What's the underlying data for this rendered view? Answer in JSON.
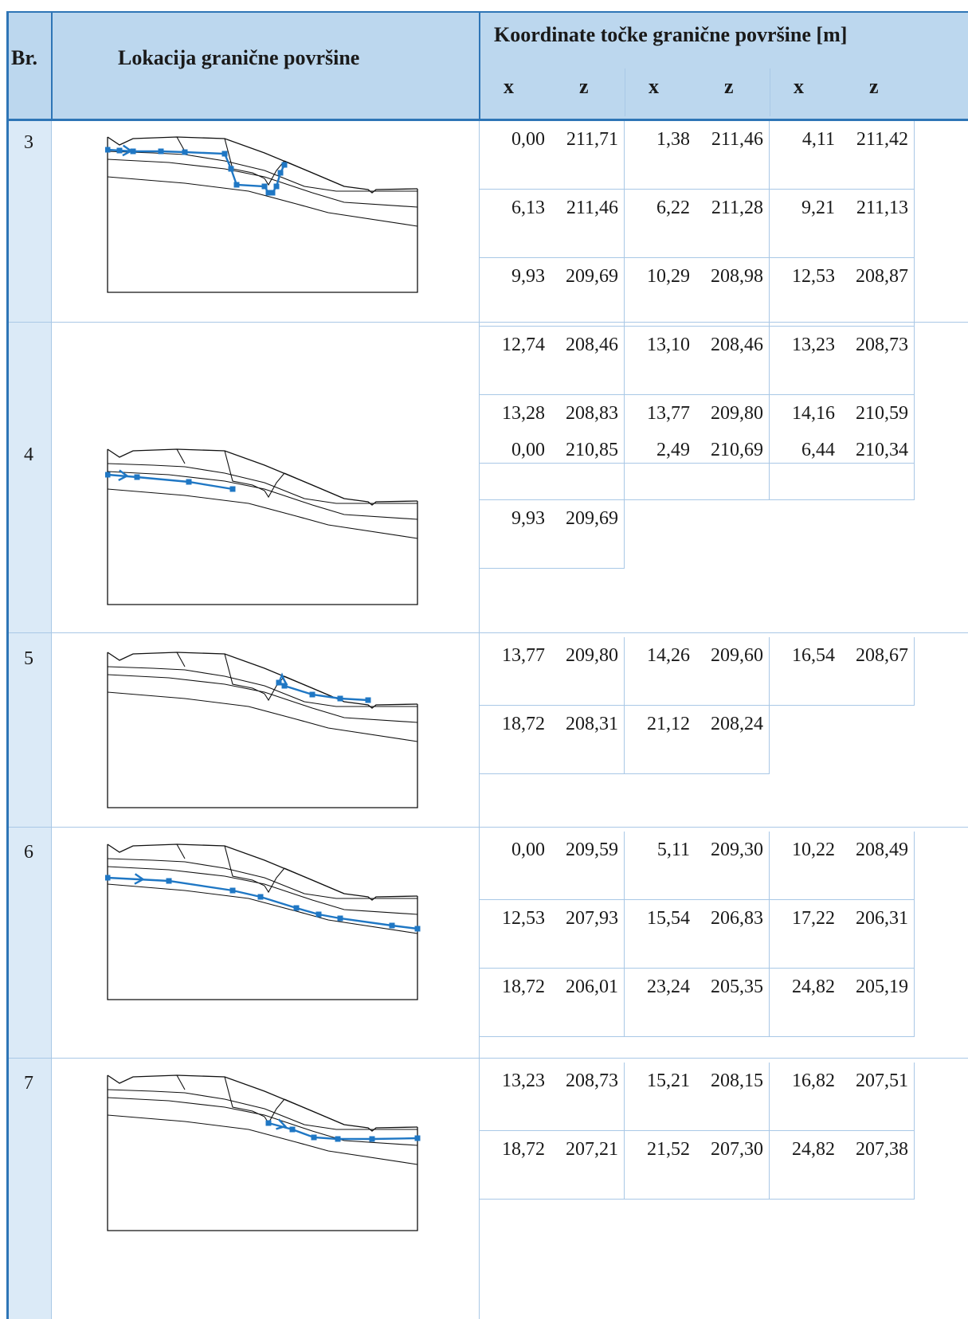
{
  "header": {
    "br": "Br.",
    "lokacija": "Lokacija granične površine",
    "koordinate": "Koordinate točke granične površine [m]",
    "subcols": [
      "x",
      "z",
      "x",
      "z",
      "x",
      "z"
    ]
  },
  "rows": [
    {
      "br": "3",
      "coords": [
        [
          "0,00",
          "211,71",
          "1,38",
          "211,46",
          "4,11",
          "211,42"
        ],
        [
          "6,13",
          "211,46",
          "6,22",
          "211,28",
          "9,21",
          "211,13"
        ],
        [
          "9,93",
          "209,69",
          "10,29",
          "208,98",
          "12,53",
          "208,87"
        ],
        [
          "12,74",
          "208,46",
          "13,10",
          "208,46",
          "13,23",
          "208,73"
        ],
        [
          "13,28",
          "208,83",
          "13,77",
          "209,80",
          "14,16",
          "210,59"
        ]
      ]
    },
    {
      "br": "4",
      "coords": [
        [
          "0,00",
          "210,85",
          "2,49",
          "210,69",
          "6,44",
          "210,34"
        ],
        [
          "9,93",
          "209,69"
        ]
      ]
    },
    {
      "br": "5",
      "coords": [
        [
          "13,77",
          "209,80",
          "14,26",
          "209,60",
          "16,54",
          "208,67"
        ],
        [
          "18,72",
          "208,31",
          "21,12",
          "208,24"
        ]
      ]
    },
    {
      "br": "6",
      "coords": [
        [
          "0,00",
          "209,59",
          "5,11",
          "209,30",
          "10,22",
          "208,49"
        ],
        [
          "12,53",
          "207,93",
          "15,54",
          "206,83",
          "17,22",
          "206,31"
        ],
        [
          "18,72",
          "206,01",
          "23,24",
          "205,35",
          "24,82",
          "205,19"
        ]
      ]
    },
    {
      "br": "7",
      "coords": [
        [
          "13,23",
          "208,73",
          "15,21",
          "208,15",
          "16,82",
          "207,51"
        ],
        [
          "18,72",
          "207,21",
          "21,52",
          "207,30",
          "24,82",
          "207,38"
        ]
      ]
    }
  ],
  "colors": {
    "accent": "#2e75b6",
    "header_bg": "#bcd7ee",
    "col1_bg": "#dbeaf7",
    "surface_line": "#1f77c4"
  }
}
